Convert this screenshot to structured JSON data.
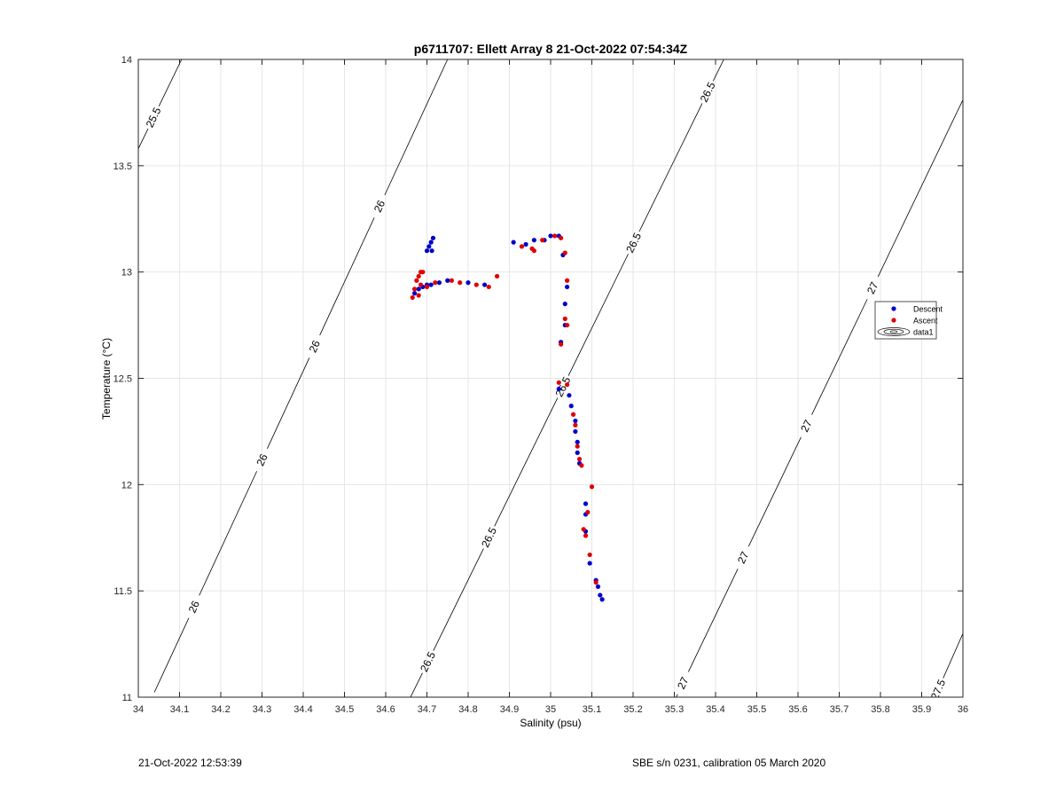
{
  "chart_data": {
    "type": "scatter",
    "title": "p6711707: Ellett Array 8 21-Oct-2022 07:54:34Z",
    "xlabel": "Salinity (psu)",
    "ylabel": "Temperature (°C)",
    "xlim": [
      34,
      36
    ],
    "ylim": [
      11,
      14
    ],
    "xticks": [
      "34",
      "34.1",
      "34.2",
      "34.3",
      "34.4",
      "34.5",
      "34.6",
      "34.7",
      "34.8",
      "34.9",
      "35",
      "35.1",
      "35.2",
      "35.3",
      "35.4",
      "35.5",
      "35.6",
      "35.7",
      "35.8",
      "35.9",
      "36"
    ],
    "yticks": [
      "11",
      "11.5",
      "12",
      "12.5",
      "13",
      "13.5",
      "14"
    ],
    "grid": true,
    "legend_position": "right",
    "legend": [
      "Descent",
      "Ascent",
      "data1"
    ],
    "colors": {
      "descent": "#0000cc",
      "ascent": "#e00000",
      "contour": "#000000",
      "grid": "#e6e6e6"
    },
    "series": [
      {
        "name": "Descent",
        "points": [
          [
            34.7,
            13.1
          ],
          [
            34.705,
            13.12
          ],
          [
            34.71,
            13.14
          ],
          [
            34.715,
            13.16
          ],
          [
            34.712,
            13.1
          ],
          [
            34.67,
            12.9
          ],
          [
            34.68,
            12.92
          ],
          [
            34.69,
            12.93
          ],
          [
            34.7,
            12.94
          ],
          [
            34.71,
            12.94
          ],
          [
            34.73,
            12.95
          ],
          [
            34.75,
            12.96
          ],
          [
            34.8,
            12.95
          ],
          [
            34.84,
            12.94
          ],
          [
            34.91,
            13.14
          ],
          [
            34.94,
            13.13
          ],
          [
            34.96,
            13.15
          ],
          [
            34.985,
            13.15
          ],
          [
            35.0,
            13.17
          ],
          [
            35.02,
            13.17
          ],
          [
            35.03,
            13.08
          ],
          [
            35.04,
            12.93
          ],
          [
            35.035,
            12.85
          ],
          [
            35.035,
            12.75
          ],
          [
            35.025,
            12.67
          ],
          [
            35.02,
            12.45
          ],
          [
            35.045,
            12.42
          ],
          [
            35.05,
            12.37
          ],
          [
            35.06,
            12.3
          ],
          [
            35.06,
            12.25
          ],
          [
            35.065,
            12.2
          ],
          [
            35.065,
            12.15
          ],
          [
            35.07,
            12.1
          ],
          [
            35.085,
            11.91
          ],
          [
            35.085,
            11.86
          ],
          [
            35.085,
            11.78
          ],
          [
            35.095,
            11.63
          ],
          [
            35.11,
            11.55
          ],
          [
            35.115,
            11.52
          ],
          [
            35.12,
            11.48
          ],
          [
            35.125,
            11.46
          ]
        ]
      },
      {
        "name": "Ascent",
        "points": [
          [
            34.665,
            12.88
          ],
          [
            34.67,
            12.92
          ],
          [
            34.675,
            12.96
          ],
          [
            34.68,
            12.98
          ],
          [
            34.685,
            13.0
          ],
          [
            34.69,
            13.0
          ],
          [
            34.685,
            12.94
          ],
          [
            34.68,
            12.89
          ],
          [
            34.7,
            12.93
          ],
          [
            34.72,
            12.95
          ],
          [
            34.76,
            12.96
          ],
          [
            34.78,
            12.95
          ],
          [
            34.82,
            12.94
          ],
          [
            34.85,
            12.93
          ],
          [
            34.87,
            12.98
          ],
          [
            34.93,
            13.12
          ],
          [
            34.955,
            13.11
          ],
          [
            34.96,
            13.1
          ],
          [
            34.98,
            13.15
          ],
          [
            35.01,
            13.17
          ],
          [
            35.025,
            13.16
          ],
          [
            35.035,
            13.09
          ],
          [
            35.04,
            12.96
          ],
          [
            35.035,
            12.78
          ],
          [
            35.04,
            12.75
          ],
          [
            35.025,
            12.66
          ],
          [
            35.02,
            12.48
          ],
          [
            35.04,
            12.47
          ],
          [
            35.055,
            12.33
          ],
          [
            35.06,
            12.28
          ],
          [
            35.065,
            12.18
          ],
          [
            35.07,
            12.12
          ],
          [
            35.075,
            12.09
          ],
          [
            35.1,
            11.99
          ],
          [
            35.09,
            11.87
          ],
          [
            35.08,
            11.79
          ],
          [
            35.085,
            11.76
          ],
          [
            35.095,
            11.67
          ],
          [
            35.11,
            11.54
          ]
        ]
      }
    ],
    "contours": [
      {
        "label": "25.5",
        "points": [
          [
            34.0,
            13.58
          ],
          [
            34.105,
            14.0
          ]
        ],
        "labels_at": [
          0.35
        ]
      },
      {
        "label": "26",
        "points": [
          [
            34.0,
            10.86
          ],
          [
            34.75,
            14.0
          ]
        ],
        "labels_at": [
          0.035,
          0.18,
          0.4,
          0.57,
          0.78
        ]
      },
      {
        "label": "26.5",
        "points": [
          [
            34.64,
            10.92
          ],
          [
            35.42,
            14.0
          ]
        ],
        "labels_at": [
          0.08,
          0.27,
          0.5,
          0.72,
          0.95
        ]
      },
      {
        "label": "27",
        "points": [
          [
            35.27,
            10.86
          ],
          [
            36.0,
            13.81
          ]
        ],
        "labels_at": [
          0.07,
          0.27,
          0.48,
          0.7
        ]
      },
      {
        "label": "27.5",
        "points": [
          [
            35.9,
            10.86
          ],
          [
            36.0,
            11.3
          ]
        ],
        "labels_at": [
          0.4
        ]
      }
    ],
    "footer_left": "21-Oct-2022 12:53:39",
    "footer_right": "SBE s/n 0231, calibration 05 March 2020"
  }
}
